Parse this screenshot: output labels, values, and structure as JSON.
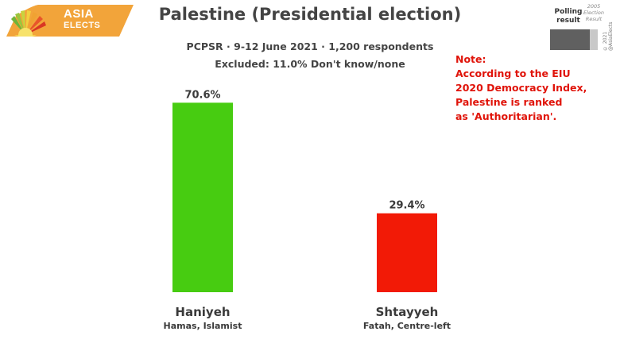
{
  "logo": {
    "line1": "ASIA",
    "line2": "ELECTS"
  },
  "header": {
    "title": "Palestine (Presidential election)",
    "subtitle": "PCPSR · 9-12 June 2021 · 1,200 respondents",
    "excluded": "Excluded: 11.0% Don't know/none"
  },
  "legend": {
    "polling_label_line1": "Polling",
    "polling_label_line2": "result",
    "result_label_line1": "2005",
    "result_label_line2": "Election",
    "result_label_line3": "Result",
    "polling_color": "#606060",
    "result_color": "#c8c8c8",
    "copyright": "© 2021 @AsiaElects"
  },
  "note": {
    "lines": [
      "Note:",
      "According to the EIU",
      "2020 Democracy Index,",
      "Palestine is ranked",
      "as 'Authoritarian'."
    ],
    "color": "#e0140a"
  },
  "chart_data": {
    "type": "bar",
    "title": "Palestine (Presidential election)",
    "categories": [
      "Haniyeh",
      "Shtayyeh"
    ],
    "category_subtitles": [
      "Hamas, Islamist",
      "Fatah, Centre-left"
    ],
    "values": [
      70.6,
      29.4
    ],
    "value_labels": [
      "70.6%",
      "29.4%"
    ],
    "colors": [
      "#47cc11",
      "#f21a06"
    ],
    "ylim": [
      0,
      100
    ],
    "grid": false,
    "xlabel": "",
    "ylabel": ""
  }
}
